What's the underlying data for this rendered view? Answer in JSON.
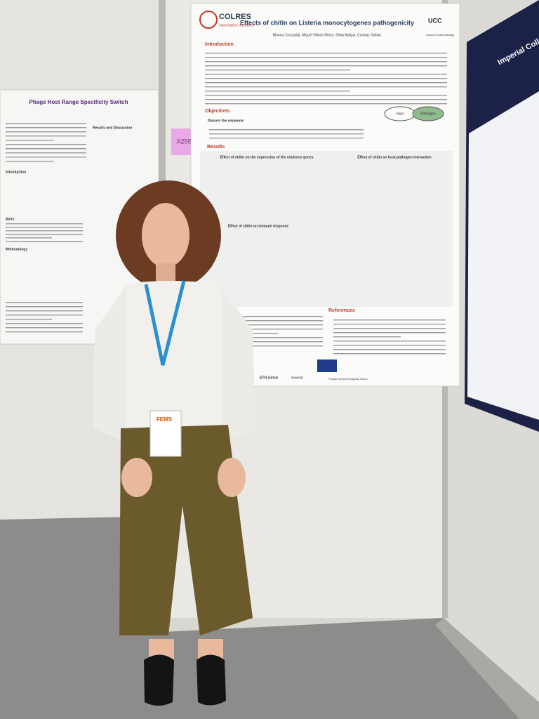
{
  "left_poster": {
    "title": "Phage Host Range Specificity Switch",
    "headings": [
      "Introduction",
      "Aims",
      "Methodology",
      "Results and Discussion"
    ]
  },
  "board_label": "A258",
  "main_poster": {
    "logo": "COLRES",
    "logo_subtitle": "colonisation resistance",
    "title": "Effects of chitin on Listeria monocytogenes pathogenicity",
    "authors": "Monica Cozzarigi, Miguel Villoria Recio, Silvia Molgar, Cormac Gahan",
    "affiliation": "UCC",
    "affiliation_subtitle": "School of Microbiology",
    "sections": [
      "Introduction",
      "Objectives",
      "Results",
      "References"
    ],
    "objective_lead": "Discern the virulence:",
    "diagram": [
      "Host",
      "Pathogen"
    ],
    "result_titles": [
      "Effect of chitin on the expression of the virulence genes",
      "Effect of chitin on host-pathogen interaction",
      "Effect of chitin on immune response"
    ],
    "sponsors": [
      "ETH zürich",
      "eurecat",
      "Funded by the European Union"
    ]
  },
  "right_poster": {
    "title": "Imperial College London"
  },
  "badge": {
    "logo": "FEMS"
  }
}
